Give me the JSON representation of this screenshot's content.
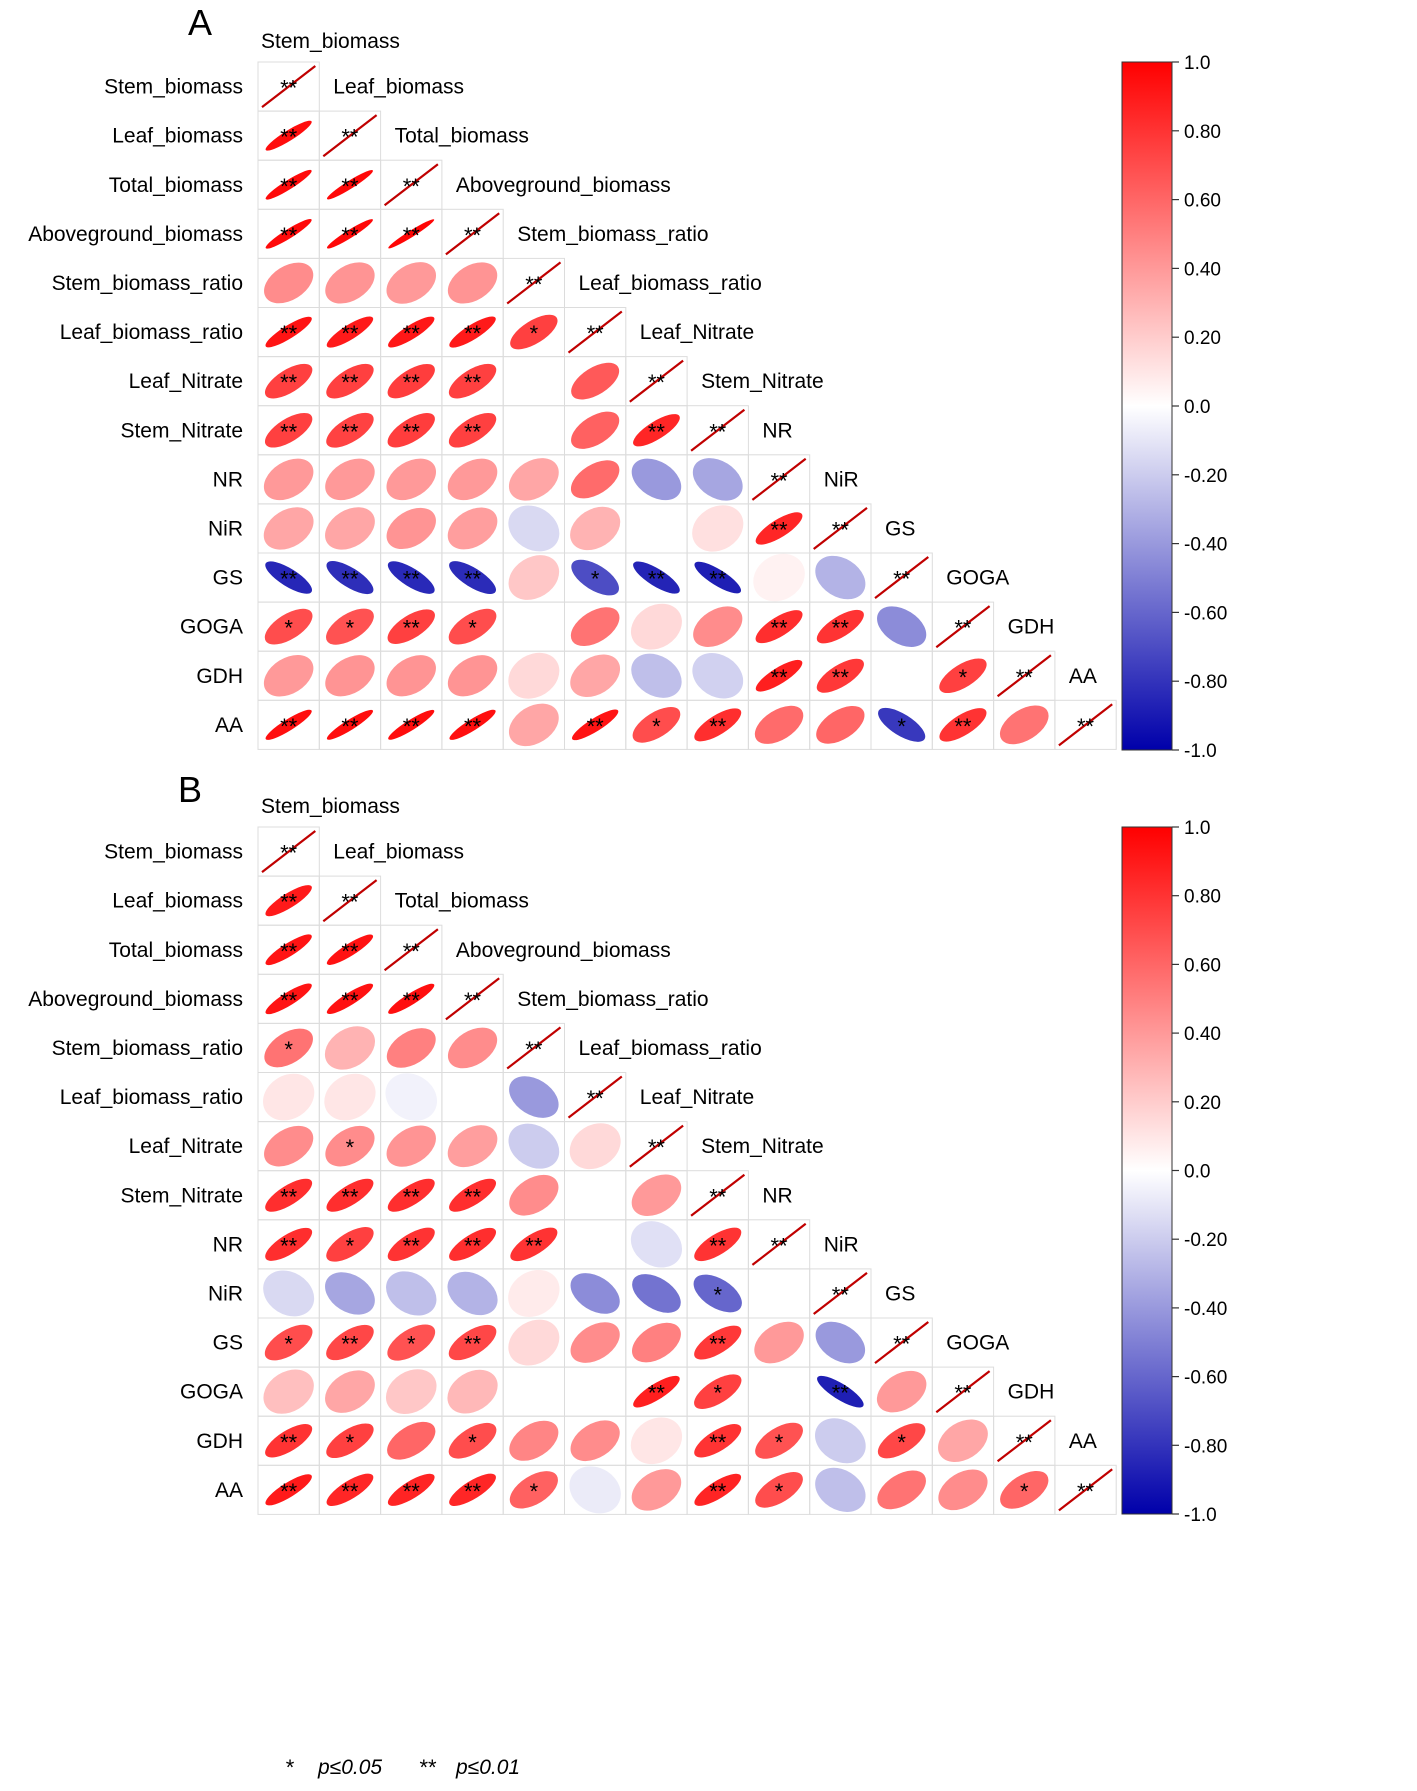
{
  "chart_data": [
    {
      "type": "heatmap",
      "panel_label": "A",
      "variables": [
        "Stem_biomass",
        "Leaf_biomass",
        "Total_biomass",
        "Aboveground_biomass",
        "Stem_biomass_ratio",
        "Leaf_biomass_ratio",
        "Leaf_Nitrate",
        "Stem_Nitrate",
        "NR",
        "NiR",
        "GS",
        "GOGA",
        "GDH",
        "AA"
      ],
      "lower_triangle": [
        [],
        [
          0.95
        ],
        [
          0.96,
          0.97
        ],
        [
          0.96,
          0.97,
          0.98
        ],
        [
          0.45,
          0.42,
          0.4,
          0.42
        ],
        [
          0.92,
          0.9,
          0.91,
          0.9,
          0.75
        ],
        [
          0.75,
          0.75,
          0.76,
          0.75,
          0.0,
          0.65
        ],
        [
          0.75,
          0.74,
          0.76,
          0.75,
          0.0,
          0.62,
          0.85
        ],
        [
          0.4,
          0.4,
          0.4,
          0.4,
          0.35,
          0.58,
          -0.4,
          -0.35
        ],
        [
          0.35,
          0.35,
          0.42,
          0.38,
          -0.15,
          0.3,
          0.0,
          0.12,
          0.85,
          0.0
        ],
        [
          -0.85,
          -0.82,
          -0.84,
          -0.83,
          0.22,
          -0.7,
          -0.86,
          -0.88,
          0.05,
          -0.3
        ],
        [
          0.7,
          0.68,
          0.75,
          0.7,
          0.0,
          0.55,
          0.15,
          0.45,
          0.82,
          0.8,
          -0.45
        ],
        [
          0.4,
          0.42,
          0.42,
          0.42,
          0.15,
          0.35,
          -0.25,
          -0.18,
          0.88,
          0.78,
          0.0,
          0.75
        ],
        [
          0.94,
          0.95,
          0.95,
          0.94,
          0.35,
          0.92,
          0.7,
          0.82,
          0.58,
          0.6,
          -0.78,
          0.8,
          0.55
        ]
      ],
      "significance": [
        [],
        [
          "**"
        ],
        [
          "**",
          "**"
        ],
        [
          "**",
          "**",
          "**"
        ],
        [
          "",
          "",
          "",
          ""
        ],
        [
          "**",
          "**",
          "**",
          "**",
          "*"
        ],
        [
          "**",
          "**",
          "**",
          "**",
          "",
          ""
        ],
        [
          "**",
          "**",
          "**",
          "**",
          "",
          "",
          "**"
        ],
        [
          "",
          "",
          "",
          "",
          "",
          "",
          "",
          ""
        ],
        [
          "",
          "",
          "",
          "",
          "",
          "",
          "",
          "",
          "**"
        ],
        [
          "**",
          "**",
          "**",
          "**",
          "",
          "*",
          "**",
          "**",
          "",
          ""
        ],
        [
          "*",
          "*",
          "**",
          "*",
          "",
          "",
          "",
          "",
          "**",
          "**",
          ""
        ],
        [
          "",
          "",
          "",
          "",
          "",
          "",
          "",
          "",
          "**",
          "**",
          "",
          "*"
        ],
        [
          "**",
          "**",
          "**",
          "**",
          "",
          "**",
          "*",
          "**",
          "",
          "",
          "*",
          "**",
          ""
        ]
      ],
      "diagonal_mark": "**",
      "colorbar": {
        "range": [
          -1.0,
          1.0
        ],
        "ticks": [
          "1.0",
          "0.80",
          "0.60",
          "0.40",
          "0.20",
          "0.0",
          "-0.20",
          "-0.40",
          "-0.60",
          "-0.80",
          "-1.0"
        ],
        "colors": {
          "negative": "#0000aa",
          "zero": "#ffffff",
          "positive": "#ff0000"
        }
      }
    },
    {
      "type": "heatmap",
      "panel_label": "B",
      "variables": [
        "Stem_biomass",
        "Leaf_biomass",
        "Total_biomass",
        "Aboveground_biomass",
        "Stem_biomass_ratio",
        "Leaf_biomass_ratio",
        "Leaf_Nitrate",
        "Stem_Nitrate",
        "NR",
        "NiR",
        "GS",
        "GOGA",
        "GDH",
        "AA"
      ],
      "lower_triangle": [
        [],
        [
          0.9
        ],
        [
          0.92,
          0.93
        ],
        [
          0.92,
          0.93,
          0.94
        ],
        [
          0.55,
          0.3,
          0.5,
          0.45
        ],
        [
          0.1,
          0.1,
          -0.05,
          0.0,
          -0.4
        ],
        [
          0.45,
          0.45,
          0.42,
          0.38,
          -0.2,
          0.15
        ],
        [
          0.82,
          0.82,
          0.82,
          0.82,
          0.45,
          0.0,
          0.4
        ],
        [
          0.82,
          0.75,
          0.8,
          0.82,
          0.8,
          0.0,
          -0.12,
          0.8
        ],
        [
          -0.15,
          -0.35,
          -0.25,
          -0.3,
          0.08,
          -0.45,
          -0.55,
          -0.6,
          0.0
        ],
        [
          0.7,
          0.72,
          0.68,
          0.72,
          0.15,
          0.45,
          0.5,
          0.78,
          0.4,
          -0.4
        ],
        [
          0.25,
          0.35,
          0.22,
          0.28,
          -0.02,
          0.0,
          0.88,
          0.75,
          0.0,
          -0.88,
          0.4
        ],
        [
          0.8,
          0.75,
          0.6,
          0.7,
          0.48,
          0.45,
          0.1,
          0.8,
          0.68,
          -0.2,
          0.72,
          0.35
        ],
        [
          0.9,
          0.85,
          0.86,
          0.85,
          0.62,
          -0.08,
          0.4,
          0.86,
          0.7,
          -0.25,
          0.55,
          0.45,
          0.6
        ]
      ],
      "significance": [
        [],
        [
          "**"
        ],
        [
          "**",
          "**"
        ],
        [
          "**",
          "**",
          "**"
        ],
        [
          "*",
          "",
          "",
          ""
        ],
        [
          "",
          "",
          "",
          "",
          ""
        ],
        [
          "",
          "*",
          "",
          "",
          "",
          ""
        ],
        [
          "**",
          "**",
          "**",
          "**",
          "",
          "",
          ""
        ],
        [
          "**",
          "*",
          "**",
          "**",
          "**",
          "",
          "",
          "**"
        ],
        [
          "",
          "",
          "",
          "",
          "",
          "",
          "",
          "*",
          ""
        ],
        [
          "*",
          "**",
          "*",
          "**",
          "",
          "",
          "",
          "**",
          "",
          ""
        ],
        [
          "",
          "",
          "",
          "",
          "",
          "",
          "**",
          "*",
          "",
          "**",
          ""
        ],
        [
          "**",
          "*",
          "",
          "*",
          "",
          "",
          "",
          "**",
          "*",
          "",
          "*",
          ""
        ],
        [
          "**",
          "**",
          "**",
          "**",
          "*",
          "",
          "",
          "**",
          "*",
          "",
          "",
          "",
          "*"
        ]
      ],
      "diagonal_mark": "**",
      "colorbar": {
        "range": [
          -1.0,
          1.0
        ],
        "ticks": [
          "1.0",
          "0.80",
          "0.60",
          "0.40",
          "0.20",
          "0.0",
          "-0.20",
          "-0.40",
          "-0.60",
          "-0.80",
          "-1.0"
        ],
        "colors": {
          "negative": "#0000aa",
          "zero": "#ffffff",
          "positive": "#ff0000"
        }
      }
    }
  ],
  "legend": {
    "single_star": "*",
    "single_label": "p≤0.05",
    "double_star": "**",
    "double_label": "p≤0.01"
  }
}
